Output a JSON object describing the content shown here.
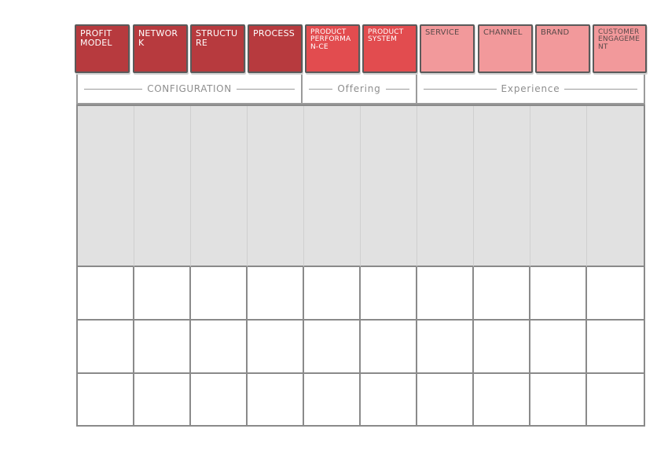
{
  "categories": [
    {
      "label": "Profit Model",
      "tone": "dark"
    },
    {
      "label": "Network",
      "tone": "dark"
    },
    {
      "label": "Structure",
      "tone": "dark"
    },
    {
      "label": "Process",
      "tone": "dark"
    },
    {
      "label": "Product Performan-ce",
      "tone": "mid"
    },
    {
      "label": "Product System",
      "tone": "mid"
    },
    {
      "label": "Service",
      "tone": "light"
    },
    {
      "label": "Channel",
      "tone": "light"
    },
    {
      "label": "Brand",
      "tone": "light"
    },
    {
      "label": "Customer Engagement",
      "tone": "light"
    }
  ],
  "groups": [
    {
      "label": "Configuration",
      "span": 4
    },
    {
      "label": "Offering",
      "span": 2
    },
    {
      "label": "Experience",
      "span": 4
    }
  ],
  "grid": {
    "columns": 10,
    "shaded_rows": 1,
    "empty_rows": 3
  },
  "colors": {
    "configuration": "#b73a3e",
    "offering": "#e24c4f",
    "experience": "#f2999b",
    "shaded_band": "#e1e1e1",
    "grid_lines": "#8a8a8a"
  }
}
